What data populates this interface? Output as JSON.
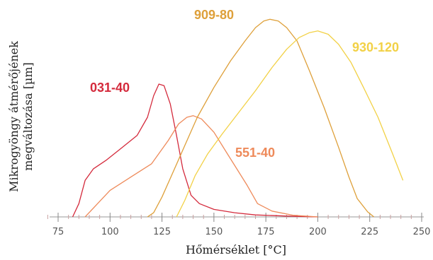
{
  "chart_data": {
    "type": "line",
    "title": "",
    "xlabel": "Hőmérséklet [°C]",
    "ylabel_line1": "Mikrogyöngy átmérőjének",
    "ylabel_line2": "megváltozása [µm]",
    "xlim": [
      70,
      250
    ],
    "xticks": [
      "75",
      "100",
      "125",
      "150",
      "175",
      "200",
      "225",
      "250"
    ],
    "y_ticks_shown": false,
    "grid": false,
    "series": [
      {
        "name": "031-40",
        "color": "#d42a3c",
        "x": [
          82,
          85,
          88,
          92,
          98,
          105,
          113,
          118,
          121,
          123.5,
          126,
          129,
          132,
          135,
          139,
          143,
          150,
          160,
          170,
          185,
          200
        ],
        "y": [
          0,
          0.8,
          2.2,
          2.9,
          3.4,
          4.1,
          4.9,
          6.0,
          7.3,
          8.0,
          7.9,
          6.8,
          4.9,
          2.9,
          1.3,
          0.8,
          0.45,
          0.25,
          0.12,
          0.05,
          0
        ]
      },
      {
        "name": "551-40",
        "color": "#ee8a5a",
        "x": [
          88,
          94,
          100,
          110,
          120,
          128,
          133,
          137,
          140,
          144,
          150,
          156,
          161,
          166,
          171,
          178,
          188,
          200
        ],
        "y": [
          0,
          0.8,
          1.6,
          2.4,
          3.2,
          4.6,
          5.6,
          6.0,
          6.1,
          5.9,
          5.1,
          3.9,
          2.9,
          1.9,
          0.8,
          0.35,
          0.1,
          0
        ]
      },
      {
        "name": "909-80",
        "color": "#dea03a",
        "x": [
          118,
          121,
          125,
          130,
          136,
          142,
          150,
          158,
          165,
          170,
          174,
          177,
          181,
          185,
          190,
          196,
          203,
          210,
          215,
          219,
          224,
          227
        ],
        "y": [
          0,
          0.25,
          1.2,
          2.6,
          4.3,
          6.0,
          7.8,
          9.4,
          10.6,
          11.4,
          11.8,
          11.9,
          11.8,
          11.4,
          10.6,
          8.8,
          6.6,
          4.2,
          2.4,
          1.1,
          0.3,
          0
        ]
      },
      {
        "name": "930-120",
        "color": "#f2d146",
        "x": [
          132,
          136,
          141,
          147,
          154,
          162,
          170,
          178,
          185,
          191,
          196,
          200,
          205,
          210,
          216,
          222,
          229,
          236,
          241
        ],
        "y": [
          0,
          1.0,
          2.5,
          3.8,
          5.0,
          6.3,
          7.6,
          9.0,
          10.1,
          10.8,
          11.1,
          11.2,
          11.0,
          10.4,
          9.3,
          7.8,
          6.0,
          3.8,
          2.2
        ]
      }
    ]
  }
}
